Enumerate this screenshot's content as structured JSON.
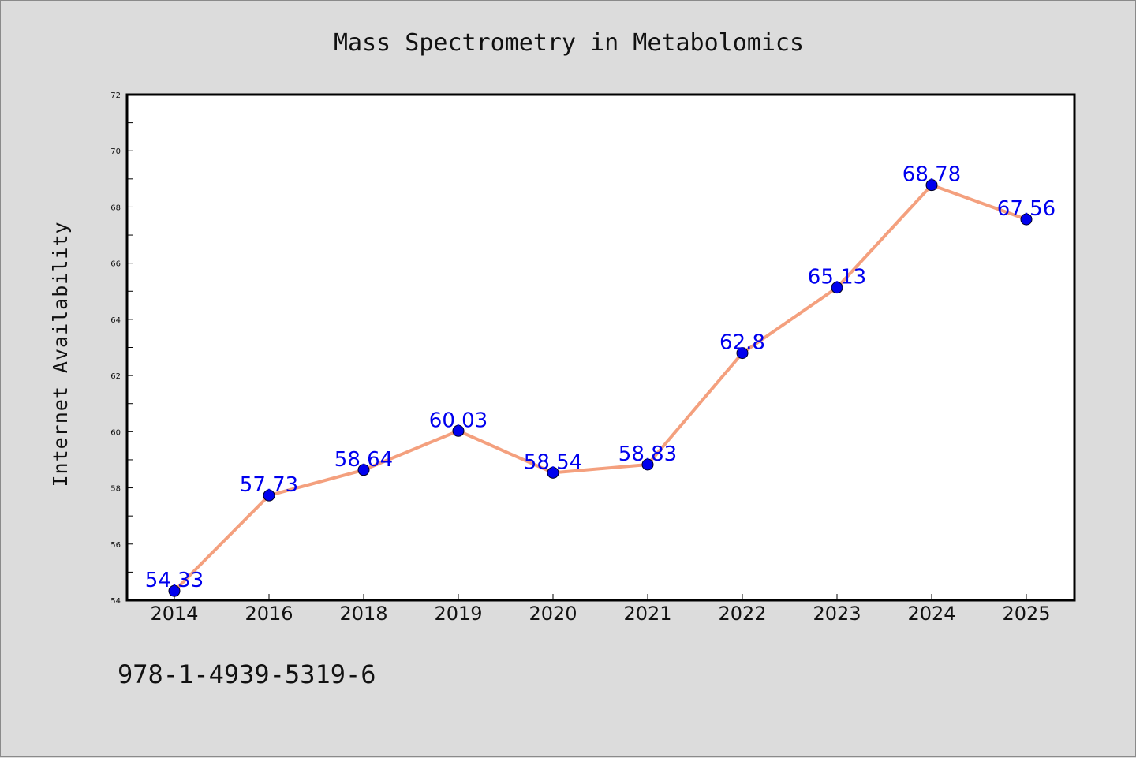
{
  "chart_data": {
    "type": "line",
    "title": "Mass Spectrometry in Metabolomics",
    "xlabel": "",
    "ylabel": "Internet Availability",
    "categories": [
      "2014",
      "2016",
      "2018",
      "2019",
      "2020",
      "2021",
      "2022",
      "2023",
      "2024",
      "2025"
    ],
    "series": [
      {
        "values": [
          54.33,
          57.73,
          58.64,
          60.03,
          58.54,
          58.83,
          62.8,
          65.13,
          68.78,
          67.56
        ],
        "data_labels": [
          "54.33",
          "57.73",
          "58.64",
          "60.03",
          "58.54",
          "58.83",
          "62.8",
          "65.13",
          "68.78",
          "67.56"
        ],
        "line_color": "#f4a07e",
        "marker_color": "#0000ee",
        "label_color": "#0000ee"
      }
    ],
    "ylim": [
      54,
      72
    ],
    "yticks": [
      "54",
      "56",
      "58",
      "60",
      "62",
      "64",
      "66",
      "68",
      "70",
      "72"
    ],
    "grid": false,
    "legend": "none"
  },
  "footer": {
    "text": "978-1-4939-5319-6"
  },
  "colors": {
    "background": "#dcdcdc",
    "plot_area": "#ffffff",
    "axis": "#000000"
  }
}
